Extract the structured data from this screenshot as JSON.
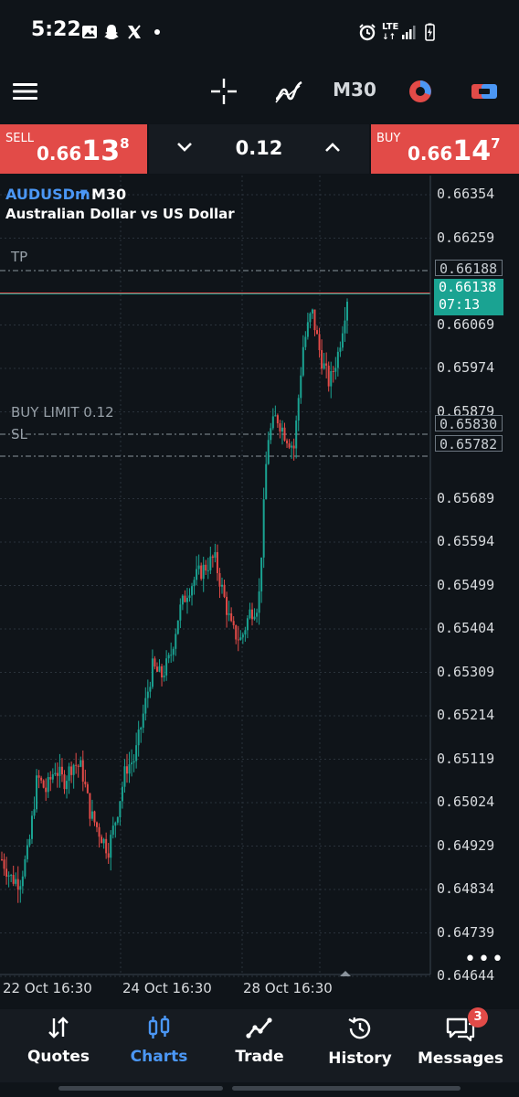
{
  "status_bar": {
    "time": "5:22",
    "network": "LTE",
    "icons": [
      "gallery-icon",
      "snapchat-icon",
      "x-icon",
      "dot-icon",
      "alarm-icon",
      "lte-icon",
      "signal-icon",
      "battery-icon"
    ]
  },
  "toolbar": {
    "menu_icon": "hamburger-icon",
    "crosshair_icon": "crosshair-icon",
    "indicators_icon": "indicators-icon",
    "timeframe": "M30",
    "account_icon": "account-chart-icon",
    "trade_icon": "toggle-trade-icon"
  },
  "trade_bar": {
    "sell_label": "SELL",
    "sell_price_small": "0.66",
    "sell_price_big": "13",
    "sell_price_sup": "8",
    "lot": "0.12",
    "buy_label": "BUY",
    "buy_price_small": "0.66",
    "buy_price_big": "14",
    "buy_price_sup": "7"
  },
  "chart": {
    "symbol": "AUDUSDm",
    "timeframe": "M30",
    "description": "Australian Dollar vs US Dollar",
    "y_ticks": [
      "0.66354",
      "0.66259",
      "0.66069",
      "0.65974",
      "0.65879",
      "0.65689",
      "0.65594",
      "0.65499",
      "0.65404",
      "0.65309",
      "0.65214",
      "0.65119",
      "0.65024",
      "0.64929",
      "0.64834",
      "0.64739",
      "0.64644"
    ],
    "x_ticks": [
      "22 Oct 16:30",
      "24 Oct 16:30",
      "28 Oct 16:30"
    ],
    "orders": {
      "tp_label": "TP",
      "tp_price": "0.66188",
      "buy_limit_label": "BUY LIMIT 0.12",
      "buy_limit_price": "0.65830",
      "sl_label": "SL",
      "sl_price": "0.65782"
    },
    "current_price": "0.66138",
    "countdown": "07:13",
    "more": "•••"
  },
  "chart_data": {
    "type": "candlestick",
    "title": "",
    "xlabel": "",
    "ylabel": "",
    "ylim": [
      0.646,
      0.6641
    ],
    "x_ticks": [
      "22 Oct 16:30",
      "24 Oct 16:30",
      "28 Oct 16:30"
    ],
    "colors": {
      "up": "#1aa392",
      "down": "#e24b48",
      "bg": "#0f1419",
      "grid": "#2a323b"
    },
    "grid": true,
    "closes_approx": [
      0.649,
      0.6486,
      0.6485,
      0.6492,
      0.6508,
      0.6505,
      0.651,
      0.6507,
      0.6511,
      0.651,
      0.65,
      0.6496,
      0.6492,
      0.65,
      0.651,
      0.6512,
      0.6522,
      0.6532,
      0.653,
      0.6534,
      0.6544,
      0.6549,
      0.6552,
      0.6554,
      0.6556,
      0.6548,
      0.654,
      0.6538,
      0.6544,
      0.6546,
      0.6582,
      0.6587,
      0.6583,
      0.658,
      0.6602,
      0.661,
      0.66,
      0.6594,
      0.6601,
      0.6613
    ]
  },
  "bottom_nav": {
    "items": [
      {
        "label": "Quotes",
        "icon": "quotes-icon"
      },
      {
        "label": "Charts",
        "icon": "charts-icon"
      },
      {
        "label": "Trade",
        "icon": "trade-icon"
      },
      {
        "label": "History",
        "icon": "history-icon"
      },
      {
        "label": "Messages",
        "icon": "messages-icon"
      }
    ],
    "active": "Charts",
    "messages_badge": "3"
  },
  "colors": {
    "accent": "#4b97f5",
    "sell": "#e24b48",
    "buy": "#e24b48",
    "up": "#1aa392",
    "down": "#e24b48"
  }
}
